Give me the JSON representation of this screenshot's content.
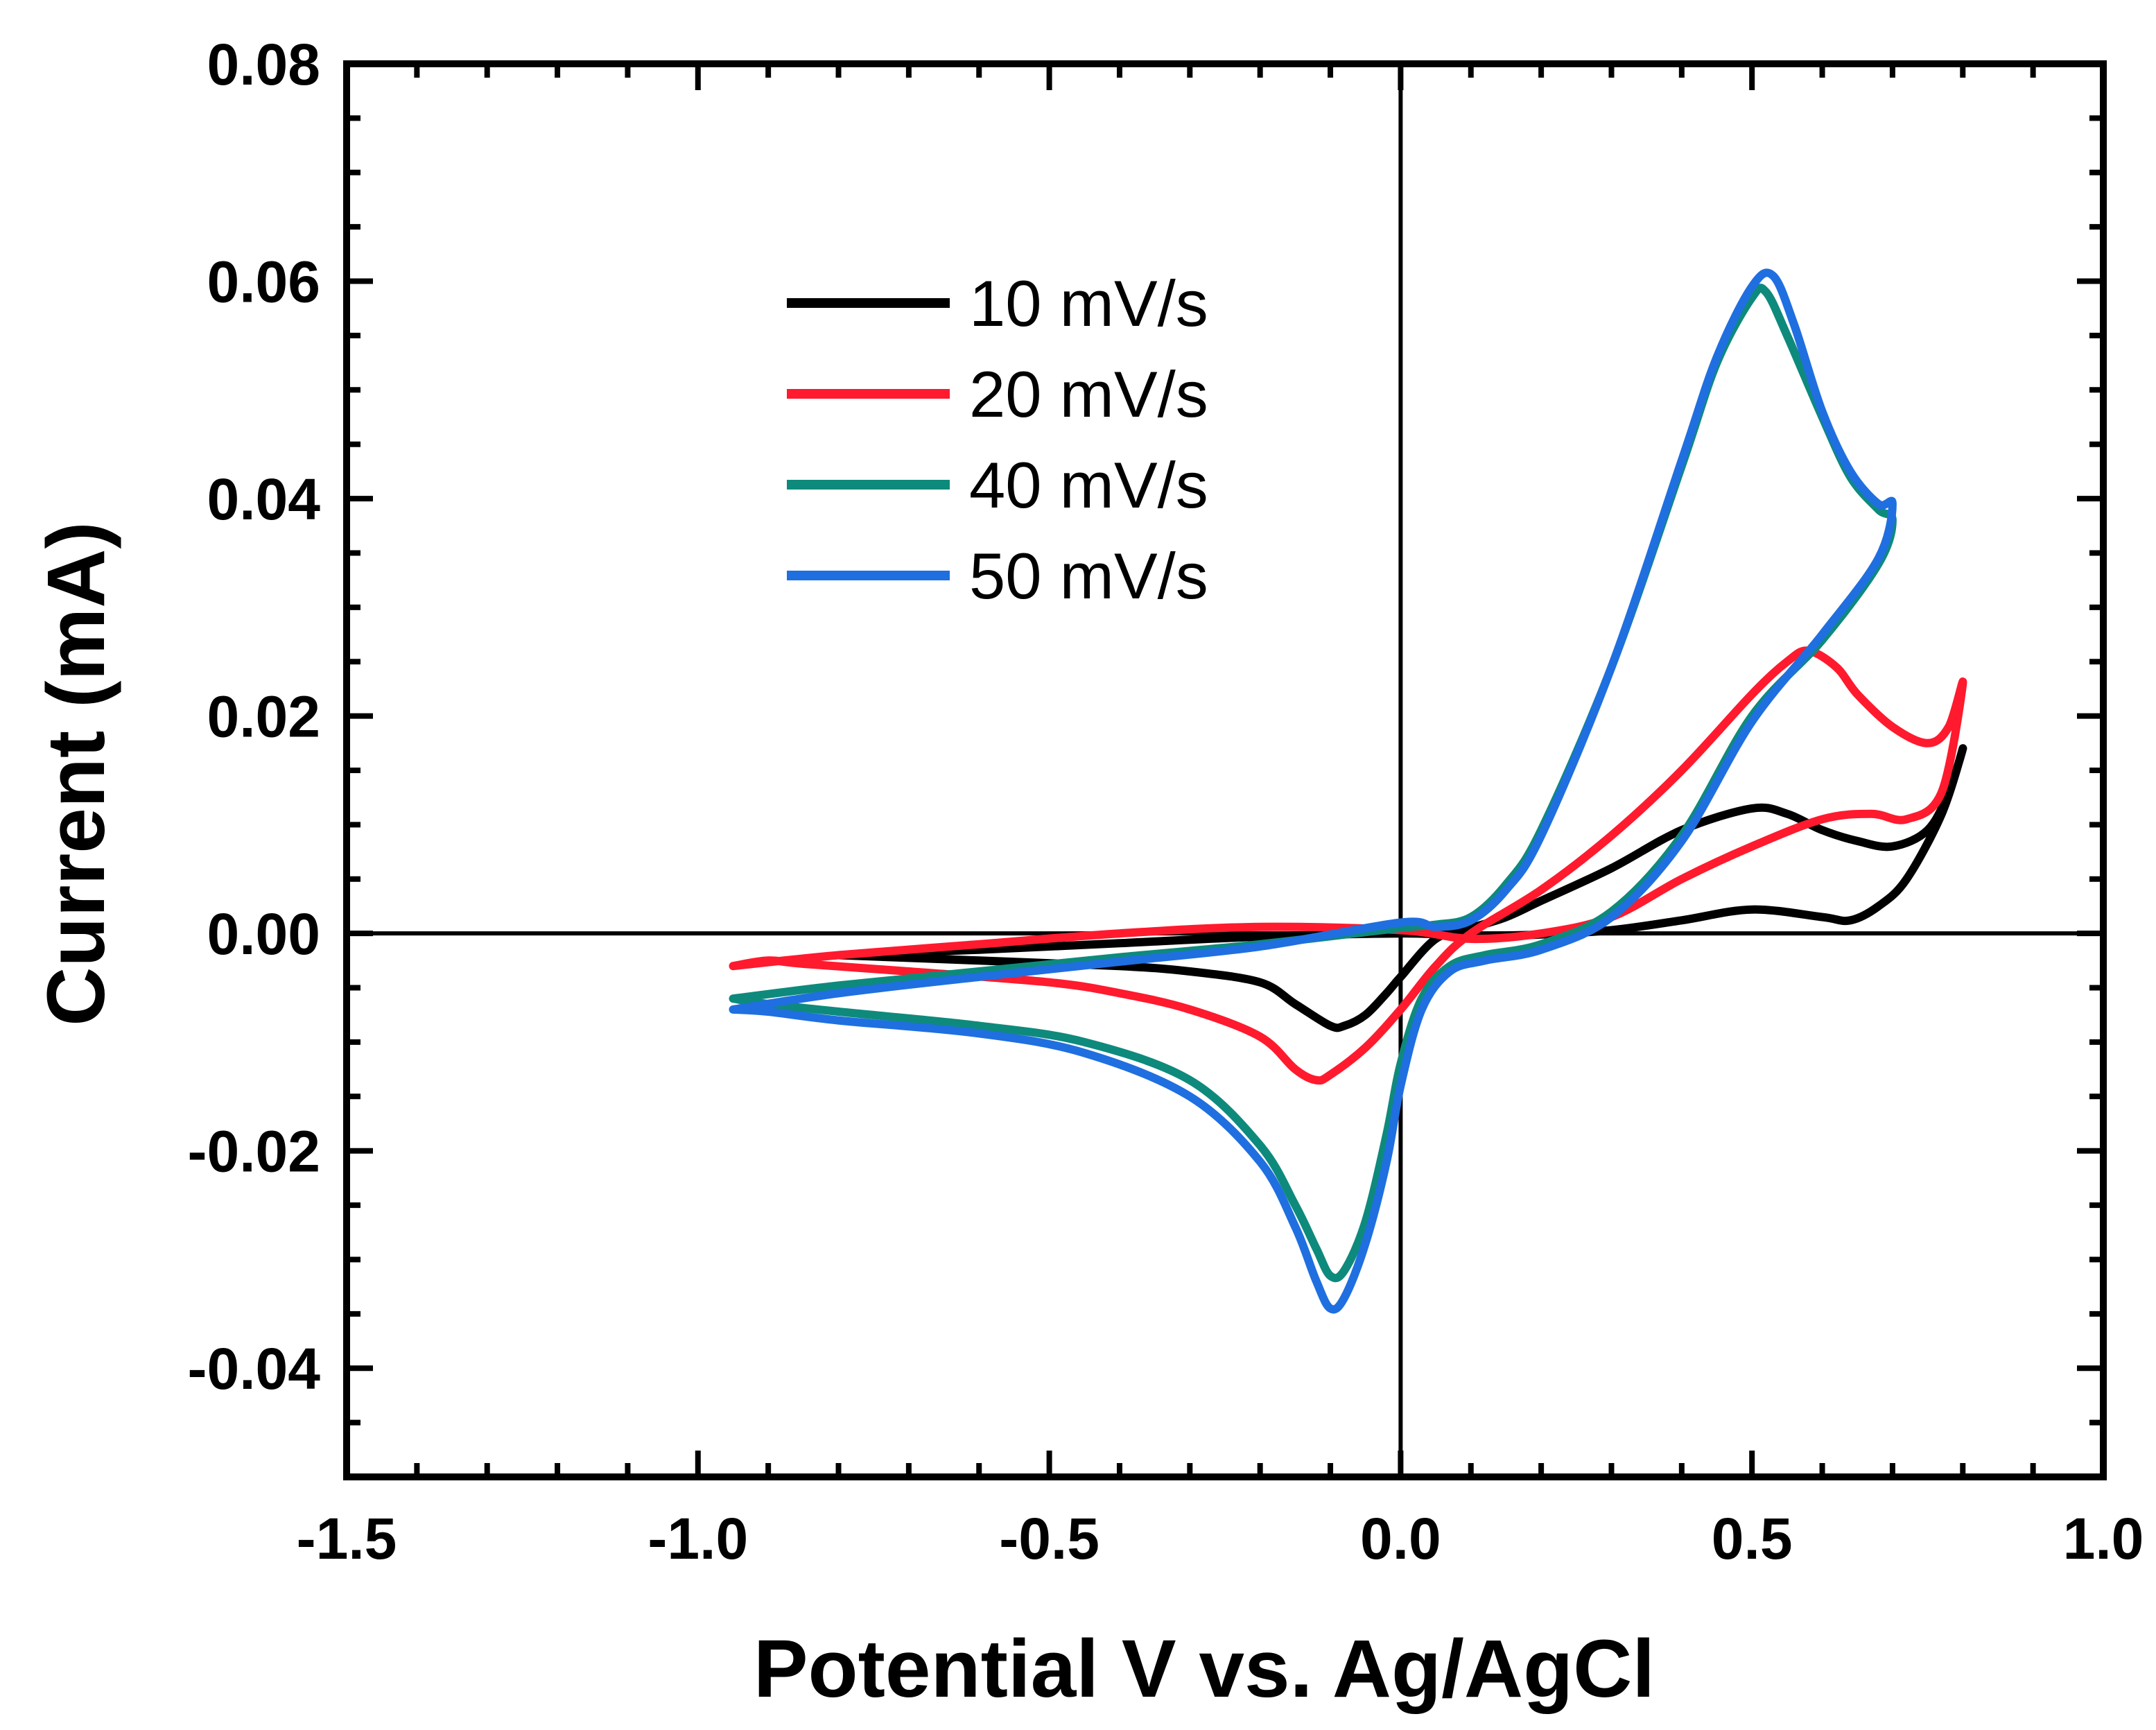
{
  "chart_data": {
    "type": "line",
    "title": "",
    "xlabel": "Potential V vs. Ag/AgCl",
    "ylabel": "Current (mA)",
    "xlim": [
      -1.5,
      1.0
    ],
    "ylim": [
      -0.05,
      0.08
    ],
    "x_ticks": [
      -1.5,
      -1.0,
      -0.5,
      0.0,
      0.5,
      1.0
    ],
    "x_tick_labels": [
      "-1.5",
      "-1.0",
      "-0.5",
      "0.0",
      "0.5",
      "1.0"
    ],
    "y_ticks": [
      -0.04,
      -0.02,
      0.0,
      0.02,
      0.04,
      0.06,
      0.08
    ],
    "y_tick_labels": [
      "-0.04",
      "-0.02",
      "0.00",
      "0.02",
      "0.04",
      "0.06",
      "0.08"
    ],
    "x_minor_step": 0.1,
    "y_minor_step": 0.005,
    "reference_lines": {
      "x": 0.0,
      "y": 0.0
    },
    "grid": false,
    "legend_position": "top-center",
    "series": [
      {
        "name": "10 mV/s",
        "color": "#000000",
        "points": [
          [
            -0.8,
            -0.002
          ],
          [
            -0.6,
            -0.0025
          ],
          [
            -0.4,
            -0.003
          ],
          [
            -0.3,
            -0.0035
          ],
          [
            -0.2,
            -0.0045
          ],
          [
            -0.15,
            -0.0065
          ],
          [
            -0.1,
            -0.0085
          ],
          [
            -0.08,
            -0.0085
          ],
          [
            -0.05,
            -0.0075
          ],
          [
            -0.02,
            -0.0055
          ],
          [
            0.0,
            -0.004
          ],
          [
            0.05,
            -0.0005
          ],
          [
            0.1,
            0.0005
          ],
          [
            0.15,
            0.0015
          ],
          [
            0.2,
            0.003
          ],
          [
            0.3,
            0.006
          ],
          [
            0.4,
            0.0095
          ],
          [
            0.5,
            0.0115
          ],
          [
            0.55,
            0.011
          ],
          [
            0.6,
            0.0095
          ],
          [
            0.65,
            0.0085
          ],
          [
            0.7,
            0.008
          ],
          [
            0.75,
            0.0095
          ],
          [
            0.78,
            0.013
          ],
          [
            0.8,
            0.017
          ],
          [
            0.77,
            0.011
          ],
          [
            0.72,
            0.005
          ],
          [
            0.68,
            0.0025
          ],
          [
            0.64,
            0.0012
          ],
          [
            0.6,
            0.0015
          ],
          [
            0.5,
            0.0022
          ],
          [
            0.4,
            0.0012
          ],
          [
            0.3,
            0.0003
          ],
          [
            0.2,
            -0.0001
          ],
          [
            0.1,
            -0.0002
          ],
          [
            0.0,
            0.0
          ],
          [
            -0.2,
            -0.0003
          ],
          [
            -0.4,
            -0.0009
          ],
          [
            -0.6,
            -0.0015
          ],
          [
            -0.8,
            -0.002
          ]
        ]
      },
      {
        "name": "20 mV/s",
        "color": "#ff1a2e",
        "points": [
          [
            -0.95,
            -0.003
          ],
          [
            -0.9,
            -0.0025
          ],
          [
            -0.85,
            -0.0028
          ],
          [
            -0.7,
            -0.0035
          ],
          [
            -0.5,
            -0.0045
          ],
          [
            -0.4,
            -0.0055
          ],
          [
            -0.3,
            -0.007
          ],
          [
            -0.2,
            -0.0095
          ],
          [
            -0.15,
            -0.0125
          ],
          [
            -0.12,
            -0.0135
          ],
          [
            -0.1,
            -0.013
          ],
          [
            -0.05,
            -0.0105
          ],
          [
            0.0,
            -0.007
          ],
          [
            0.05,
            -0.003
          ],
          [
            0.1,
            0.0
          ],
          [
            0.2,
            0.004
          ],
          [
            0.3,
            0.009
          ],
          [
            0.4,
            0.015
          ],
          [
            0.5,
            0.022
          ],
          [
            0.55,
            0.025
          ],
          [
            0.58,
            0.026
          ],
          [
            0.62,
            0.0245
          ],
          [
            0.65,
            0.022
          ],
          [
            0.7,
            0.019
          ],
          [
            0.75,
            0.0175
          ],
          [
            0.78,
            0.019
          ],
          [
            0.8,
            0.023
          ],
          [
            0.77,
            0.013
          ],
          [
            0.72,
            0.0105
          ],
          [
            0.67,
            0.011
          ],
          [
            0.6,
            0.0105
          ],
          [
            0.5,
            0.008
          ],
          [
            0.4,
            0.005
          ],
          [
            0.3,
            0.0015
          ],
          [
            0.2,
            0.0
          ],
          [
            0.1,
            -0.0005
          ],
          [
            0.0,
            0.0003
          ],
          [
            -0.2,
            0.0006
          ],
          [
            -0.4,
            0.0
          ],
          [
            -0.6,
            -0.001
          ],
          [
            -0.8,
            -0.002
          ],
          [
            -0.95,
            -0.003
          ]
        ]
      },
      {
        "name": "40 mV/s",
        "color": "#0e8a7c",
        "points": [
          [
            -0.95,
            -0.006
          ],
          [
            -0.9,
            -0.0065
          ],
          [
            -0.8,
            -0.0072
          ],
          [
            -0.6,
            -0.0085
          ],
          [
            -0.45,
            -0.01
          ],
          [
            -0.3,
            -0.0135
          ],
          [
            -0.2,
            -0.0195
          ],
          [
            -0.15,
            -0.025
          ],
          [
            -0.12,
            -0.029
          ],
          [
            -0.1,
            -0.0315
          ],
          [
            -0.08,
            -0.031
          ],
          [
            -0.05,
            -0.0265
          ],
          [
            -0.02,
            -0.0185
          ],
          [
            0.0,
            -0.012
          ],
          [
            0.03,
            -0.006
          ],
          [
            0.07,
            -0.003
          ],
          [
            0.12,
            -0.002
          ],
          [
            0.2,
            -0.001
          ],
          [
            0.3,
            0.002
          ],
          [
            0.4,
            0.009
          ],
          [
            0.5,
            0.02
          ],
          [
            0.6,
            0.027
          ],
          [
            0.68,
            0.034
          ],
          [
            0.7,
            0.038
          ],
          [
            0.68,
            0.039
          ],
          [
            0.64,
            0.042
          ],
          [
            0.6,
            0.0475
          ],
          [
            0.55,
            0.055
          ],
          [
            0.52,
            0.059
          ],
          [
            0.5,
            0.0585
          ],
          [
            0.45,
            0.0525
          ],
          [
            0.4,
            0.043
          ],
          [
            0.3,
            0.0245
          ],
          [
            0.2,
            0.0095
          ],
          [
            0.15,
            0.0045
          ],
          [
            0.1,
            0.0015
          ],
          [
            0.05,
            0.0008
          ],
          [
            0.0,
            0.0005
          ],
          [
            -0.2,
            -0.001
          ],
          [
            -0.4,
            -0.0022
          ],
          [
            -0.6,
            -0.0035
          ],
          [
            -0.8,
            -0.0048
          ],
          [
            -0.95,
            -0.006
          ]
        ]
      },
      {
        "name": "50 mV/s",
        "color": "#1f6fe0",
        "points": [
          [
            -0.95,
            -0.007
          ],
          [
            -0.9,
            -0.0072
          ],
          [
            -0.8,
            -0.008
          ],
          [
            -0.6,
            -0.0092
          ],
          [
            -0.45,
            -0.011
          ],
          [
            -0.3,
            -0.015
          ],
          [
            -0.2,
            -0.021
          ],
          [
            -0.15,
            -0.027
          ],
          [
            -0.12,
            -0.032
          ],
          [
            -0.1,
            -0.0345
          ],
          [
            -0.08,
            -0.0335
          ],
          [
            -0.05,
            -0.0285
          ],
          [
            -0.02,
            -0.021
          ],
          [
            0.0,
            -0.014
          ],
          [
            0.03,
            -0.007
          ],
          [
            0.07,
            -0.0035
          ],
          [
            0.12,
            -0.0025
          ],
          [
            0.2,
            -0.0015
          ],
          [
            0.3,
            0.0015
          ],
          [
            0.4,
            0.0085
          ],
          [
            0.5,
            0.0195
          ],
          [
            0.6,
            0.0275
          ],
          [
            0.68,
            0.0345
          ],
          [
            0.7,
            0.0395
          ],
          [
            0.68,
            0.0395
          ],
          [
            0.64,
            0.0425
          ],
          [
            0.6,
            0.048
          ],
          [
            0.56,
            0.056
          ],
          [
            0.53,
            0.0605
          ],
          [
            0.5,
            0.0595
          ],
          [
            0.45,
            0.053
          ],
          [
            0.4,
            0.0435
          ],
          [
            0.3,
            0.0245
          ],
          [
            0.2,
            0.009
          ],
          [
            0.15,
            0.004
          ],
          [
            0.1,
            0.0012
          ],
          [
            0.05,
            0.0006
          ],
          [
            0.0,
            0.001
          ],
          [
            -0.2,
            -0.0012
          ],
          [
            -0.4,
            -0.0026
          ],
          [
            -0.6,
            -0.004
          ],
          [
            -0.8,
            -0.0055
          ],
          [
            -0.95,
            -0.007
          ]
        ]
      }
    ]
  }
}
